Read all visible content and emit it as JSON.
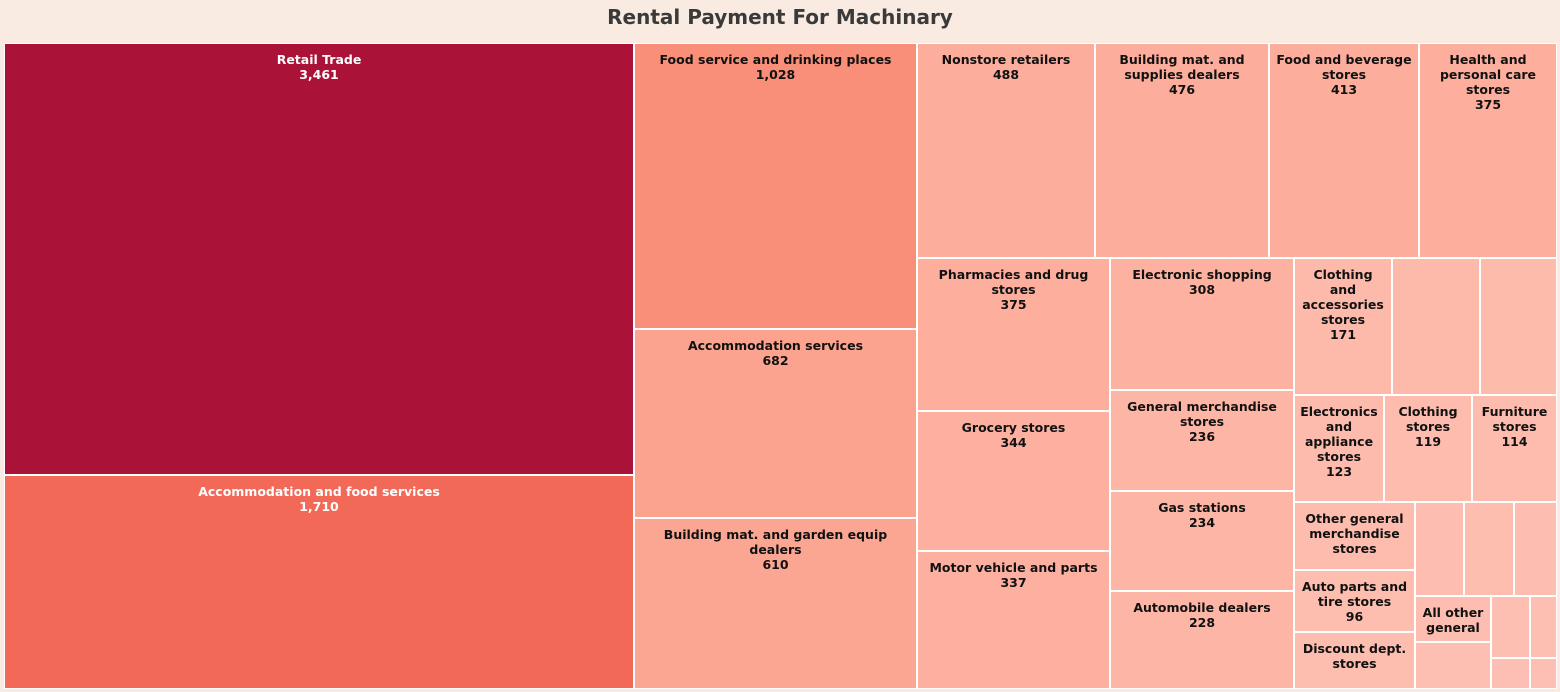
{
  "chart_data": {
    "type": "treemap",
    "title": "Rental Payment For Machinary",
    "tiles": [
      {
        "label": "Retail Trade",
        "value": "3,461",
        "color": "#ab1237",
        "text_color": "#ffffff"
      },
      {
        "label": "Accommodation and food services",
        "value": "1,710",
        "color": "#f26957",
        "text_color": "#ffffff"
      },
      {
        "label": "Food service and drinking places",
        "value": "1,028",
        "color": "#f98f78",
        "text_color": "#111111"
      },
      {
        "label": "Accommodation services",
        "value": "682",
        "color": "#fba38f",
        "text_color": "#111111"
      },
      {
        "label": "Building mat. and garden equip dealers",
        "value": "610",
        "color": "#fba692",
        "text_color": "#111111"
      },
      {
        "label": "Nonstore retailers",
        "value": "488",
        "color": "#fdad9b",
        "text_color": "#111111"
      },
      {
        "label": "Building mat. and supplies dealers",
        "value": "476",
        "color": "#fdad9b",
        "text_color": "#111111"
      },
      {
        "label": "Food and beverage stores",
        "value": "413",
        "color": "#fdad9b",
        "text_color": "#111111"
      },
      {
        "label": "Health and personal care stores",
        "value": "375",
        "color": "#fdae9c",
        "text_color": "#111111"
      },
      {
        "label": "Pharmacies and drug stores",
        "value": "375",
        "color": "#fdae9c",
        "text_color": "#111111"
      },
      {
        "label": "Grocery stores",
        "value": "344",
        "color": "#fdb09f",
        "text_color": "#111111"
      },
      {
        "label": "Motor vehicle and parts",
        "value": "337",
        "color": "#fdb09f",
        "text_color": "#111111"
      },
      {
        "label": "Electronic shopping",
        "value": "308",
        "color": "#fdb2a1",
        "text_color": "#111111"
      },
      {
        "label": "General merchandise stores",
        "value": "236",
        "color": "#fdb5a5",
        "text_color": "#111111"
      },
      {
        "label": "Gas stations",
        "value": "234",
        "color": "#fdb5a5",
        "text_color": "#111111"
      },
      {
        "label": "Automobile dealers",
        "value": "228",
        "color": "#fdb6a6",
        "text_color": "#111111"
      },
      {
        "label": "Clothing and accessories stores",
        "value": "171",
        "color": "#fdb9aa",
        "text_color": "#111111"
      },
      {
        "label": "",
        "value": "",
        "color": "#fdbaab",
        "text_color": "#111111"
      },
      {
        "label": "",
        "value": "",
        "color": "#fdbbac",
        "text_color": "#111111"
      },
      {
        "label": "Electronics and appliance stores",
        "value": "123",
        "color": "#fdbbad",
        "text_color": "#111111"
      },
      {
        "label": "Clothing stores",
        "value": "119",
        "color": "#fdbcad",
        "text_color": "#111111"
      },
      {
        "label": "Furniture stores",
        "value": "114",
        "color": "#fdbcae",
        "text_color": "#111111"
      },
      {
        "label": "Other general merchandise stores",
        "value": "",
        "color": "#fdbcae",
        "text_color": "#111111"
      },
      {
        "label": "Auto parts and tire stores",
        "value": "96",
        "color": "#fdbdaf",
        "text_color": "#111111"
      },
      {
        "label": "Discount dept. stores",
        "value": "",
        "color": "#fdbdaf",
        "text_color": "#111111"
      },
      {
        "label": "",
        "value": "",
        "color": "#fdbdb0",
        "text_color": "#111111"
      },
      {
        "label": "",
        "value": "",
        "color": "#fdbeb0",
        "text_color": "#111111"
      },
      {
        "label": "",
        "value": "",
        "color": "#fdbeb1",
        "text_color": "#111111"
      },
      {
        "label": "All other general",
        "value": "",
        "color": "#fdbeb1",
        "text_color": "#111111"
      },
      {
        "label": "",
        "value": "",
        "color": "#fdbfb2",
        "text_color": "#111111"
      },
      {
        "label": "",
        "value": "",
        "color": "#fdbfb2",
        "text_color": "#111111"
      },
      {
        "label": "",
        "value": "",
        "color": "#fdbfb2",
        "text_color": "#111111"
      },
      {
        "label": "",
        "value": "",
        "color": "#fdbfb3",
        "text_color": "#111111"
      },
      {
        "label": "",
        "value": "",
        "color": "#fdbfb3",
        "text_color": "#111111"
      }
    ]
  }
}
